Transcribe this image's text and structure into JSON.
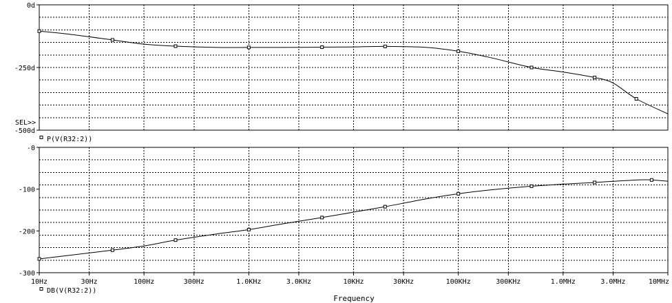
{
  "chart_data": [
    {
      "type": "line",
      "scale": "log-x",
      "ylim": [
        -500,
        0
      ],
      "y_tick_labels": [
        "0d",
        "-250d",
        "-500d"
      ],
      "y_tick_values": [
        0,
        -250,
        -500
      ],
      "selector_label": "SEL>>",
      "series": [
        {
          "name": "P(V(R32:2))",
          "marker": "square",
          "x": [
            10,
            20,
            50,
            100,
            200,
            500,
            1000,
            2000,
            5000,
            10000,
            20000,
            50000,
            100000,
            200000,
            500000,
            1000000,
            2000000,
            3000000,
            5000000,
            10000000
          ],
          "y": [
            -105,
            -118,
            -140,
            -157,
            -165,
            -170,
            -170,
            -170,
            -169,
            -168,
            -166,
            -170,
            -185,
            -210,
            -250,
            -268,
            -290,
            -312,
            -375,
            -435
          ]
        }
      ]
    },
    {
      "type": "line",
      "scale": "log-x",
      "ylim": [
        -300,
        0
      ],
      "y_tick_labels": [
        "-0",
        "-100",
        "-200",
        "-300"
      ],
      "y_tick_values": [
        0,
        -100,
        -200,
        -300
      ],
      "x_tick_labels": [
        "10Hz",
        "30Hz",
        "100Hz",
        "300Hz",
        "1.0KHz",
        "3.0KHz",
        "10KHz",
        "30KHz",
        "100KHz",
        "300KHz",
        "1.0MHz",
        "3.0MHz",
        "10MHz"
      ],
      "x_tick_values": [
        10,
        30,
        100,
        300,
        1000,
        3000,
        10000,
        30000,
        100000,
        300000,
        1000000,
        3000000,
        10000000
      ],
      "xlabel": "Frequency",
      "xlim": [
        10,
        10000000
      ],
      "series": [
        {
          "name": "DB(V(R32:2))",
          "marker": "square",
          "x": [
            10,
            20,
            50,
            100,
            200,
            500,
            1000,
            2000,
            5000,
            10000,
            20000,
            50000,
            100000,
            200000,
            500000,
            1000000,
            2000000,
            5000000,
            7000000,
            10000000
          ],
          "y": [
            -267,
            -258,
            -246,
            -236,
            -222,
            -207,
            -197,
            -184,
            -168,
            -155,
            -142,
            -123,
            -111,
            -102,
            -93,
            -88,
            -84,
            -78,
            -78,
            -81
          ]
        }
      ]
    }
  ]
}
